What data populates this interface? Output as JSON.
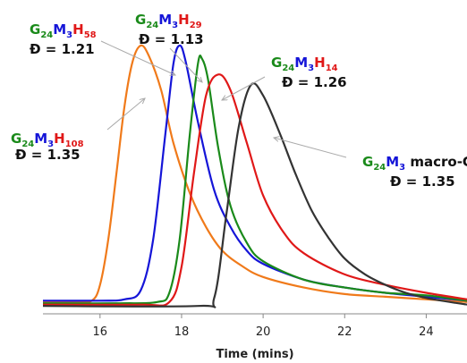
{
  "chart_data": {
    "type": "line",
    "xlabel": "Time (mins)",
    "ylabel": "",
    "xlim": [
      14.6,
      25
    ],
    "ylim": [
      -0.03,
      1.0
    ],
    "xticks": [
      16,
      18,
      20,
      22,
      24
    ],
    "tick_labels": [
      "16",
      "18",
      "20",
      "22",
      "24"
    ],
    "grid": false,
    "colors": {
      "G": "#1a8a1a",
      "M": "#1515d8",
      "H": "#e01818",
      "text": "#111111"
    },
    "series": [
      {
        "color": "#f07a1a",
        "label_parts": [
          {
            "t": "G",
            "c": "G"
          },
          {
            "t": "24",
            "c": "G",
            "sub": true
          },
          {
            "t": "M",
            "c": "M"
          },
          {
            "t": "3",
            "c": "M",
            "sub": true
          },
          {
            "t": "H",
            "c": "H"
          },
          {
            "t": "108",
            "c": "H",
            "sub": true
          }
        ],
        "dispersity": "Đ = 1.35",
        "points": [
          [
            14.6,
            0.015
          ],
          [
            15.4,
            0.016
          ],
          [
            15.8,
            0.02
          ],
          [
            16.0,
            0.08
          ],
          [
            16.2,
            0.25
          ],
          [
            16.4,
            0.5
          ],
          [
            16.6,
            0.76
          ],
          [
            16.8,
            0.93
          ],
          [
            17.0,
            0.99
          ],
          [
            17.2,
            0.95
          ],
          [
            17.5,
            0.82
          ],
          [
            17.8,
            0.62
          ],
          [
            18.2,
            0.43
          ],
          [
            18.6,
            0.3
          ],
          [
            19.0,
            0.21
          ],
          [
            19.5,
            0.15
          ],
          [
            20.0,
            0.11
          ],
          [
            21.0,
            0.07
          ],
          [
            22.0,
            0.045
          ],
          [
            23.0,
            0.035
          ],
          [
            24.0,
            0.025
          ],
          [
            25.0,
            0.015
          ]
        ]
      },
      {
        "color": "#1515d8",
        "label_parts": [
          {
            "t": "G",
            "c": "G"
          },
          {
            "t": "24",
            "c": "G",
            "sub": true
          },
          {
            "t": "M",
            "c": "M"
          },
          {
            "t": "3",
            "c": "M",
            "sub": true
          },
          {
            "t": "H",
            "c": "H"
          },
          {
            "t": "58",
            "c": "H",
            "sub": true
          }
        ],
        "dispersity": "Đ = 1.21",
        "points": [
          [
            14.6,
            0.02
          ],
          [
            16.0,
            0.02
          ],
          [
            16.6,
            0.025
          ],
          [
            17.0,
            0.06
          ],
          [
            17.3,
            0.25
          ],
          [
            17.6,
            0.65
          ],
          [
            17.8,
            0.92
          ],
          [
            17.95,
            0.99
          ],
          [
            18.1,
            0.93
          ],
          [
            18.4,
            0.7
          ],
          [
            18.8,
            0.44
          ],
          [
            19.2,
            0.3
          ],
          [
            19.6,
            0.21
          ],
          [
            20.0,
            0.16
          ],
          [
            21.0,
            0.1
          ],
          [
            22.0,
            0.07
          ],
          [
            23.0,
            0.05
          ],
          [
            24.0,
            0.035
          ],
          [
            25.0,
            0.02
          ]
        ]
      },
      {
        "color": "#1a8a1a",
        "label_parts": [
          {
            "t": "G",
            "c": "G"
          },
          {
            "t": "24",
            "c": "G",
            "sub": true
          },
          {
            "t": "M",
            "c": "M"
          },
          {
            "t": "3",
            "c": "M",
            "sub": true
          },
          {
            "t": "H",
            "c": "H"
          },
          {
            "t": "29",
            "c": "H",
            "sub": true
          }
        ],
        "dispersity": "Đ = 1.13",
        "points": [
          [
            14.6,
            0.01
          ],
          [
            16.5,
            0.01
          ],
          [
            17.4,
            0.015
          ],
          [
            17.7,
            0.05
          ],
          [
            17.95,
            0.25
          ],
          [
            18.2,
            0.65
          ],
          [
            18.4,
            0.92
          ],
          [
            18.5,
            0.94
          ],
          [
            18.65,
            0.86
          ],
          [
            18.9,
            0.6
          ],
          [
            19.2,
            0.38
          ],
          [
            19.6,
            0.24
          ],
          [
            20.0,
            0.17
          ],
          [
            21.0,
            0.1
          ],
          [
            22.0,
            0.07
          ],
          [
            23.0,
            0.05
          ],
          [
            24.0,
            0.04
          ],
          [
            25.0,
            0.02
          ]
        ]
      },
      {
        "color": "#e01818",
        "label_parts": [
          {
            "t": "G",
            "c": "G"
          },
          {
            "t": "24",
            "c": "G",
            "sub": true
          },
          {
            "t": "M",
            "c": "M"
          },
          {
            "t": "3",
            "c": "M",
            "sub": true
          },
          {
            "t": "H",
            "c": "H"
          },
          {
            "t": "14",
            "c": "H",
            "sub": true
          }
        ],
        "dispersity": "Đ = 1.26",
        "points": [
          [
            14.6,
            0.005
          ],
          [
            17.0,
            0.005
          ],
          [
            17.7,
            0.015
          ],
          [
            18.0,
            0.15
          ],
          [
            18.3,
            0.5
          ],
          [
            18.6,
            0.8
          ],
          [
            18.9,
            0.88
          ],
          [
            19.2,
            0.82
          ],
          [
            19.6,
            0.62
          ],
          [
            20.0,
            0.42
          ],
          [
            20.5,
            0.28
          ],
          [
            21.0,
            0.2
          ],
          [
            22.0,
            0.12
          ],
          [
            23.0,
            0.08
          ],
          [
            24.0,
            0.05
          ],
          [
            25.0,
            0.025
          ]
        ]
      },
      {
        "color": "#333333",
        "label_parts": [
          {
            "t": "G",
            "c": "G"
          },
          {
            "t": "24",
            "c": "G",
            "sub": true
          },
          {
            "t": "M",
            "c": "M"
          },
          {
            "t": "3",
            "c": "M",
            "sub": true
          },
          {
            "t": " macro-CTA",
            "c": "text"
          }
        ],
        "dispersity": "Đ = 1.35",
        "points": [
          [
            14.6,
            0.0
          ],
          [
            18.4,
            0.0
          ],
          [
            18.8,
            0.03
          ],
          [
            19.1,
            0.35
          ],
          [
            19.4,
            0.68
          ],
          [
            19.7,
            0.84
          ],
          [
            20.0,
            0.8
          ],
          [
            20.4,
            0.66
          ],
          [
            20.8,
            0.5
          ],
          [
            21.2,
            0.36
          ],
          [
            21.6,
            0.26
          ],
          [
            22.0,
            0.18
          ],
          [
            22.5,
            0.12
          ],
          [
            23.0,
            0.08
          ],
          [
            23.5,
            0.05
          ],
          [
            24.0,
            0.03
          ],
          [
            25.0,
            0.005
          ]
        ]
      }
    ]
  }
}
